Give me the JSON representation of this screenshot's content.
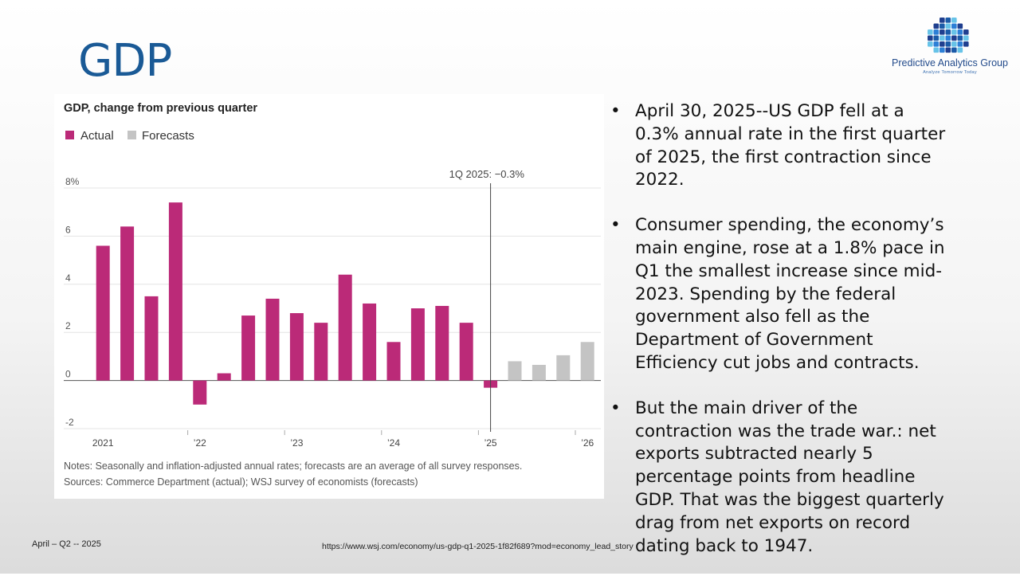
{
  "slide": {
    "title": "GDP",
    "footer_left": "April – Q2 -- 2025",
    "footer_url": "https://www.wsj.com/economy/us-gdp-q1-2025-1f82f689?mod=economy_lead_story"
  },
  "logo": {
    "name": "Predictive Analytics Group",
    "tagline": "Analyze Tomorrow Today",
    "colors": [
      "#1f3f8f",
      "#2c7fd6",
      "#67c3e8",
      "#1a5aa8"
    ]
  },
  "bullets": [
    "April 30, 2025--US GDP fell at a 0.3% annual rate in the first quarter of 2025, the first contraction since 2022.",
    "Consumer spending, the economy’s main engine, rose at a 1.8% pace in Q1 the smallest increase since mid-2023. Spending by the federal government also fell as the Department of Government Efficiency cut jobs and contracts.",
    "But the main driver of the contraction was the trade war.: net exports subtracted nearly 5 percentage points from headline GDP.  That was the biggest quarterly drag from net exports on record dating back to 1947."
  ],
  "bullet_symbol": "•",
  "chart_data": {
    "type": "bar",
    "title": "GDP, change from previous quarter",
    "legend": [
      {
        "name": "Actual",
        "color": "#bb2a78"
      },
      {
        "name": "Forecasts",
        "color": "#c4c4c4"
      }
    ],
    "legend_position": "top-left",
    "categories": [
      "1Q21",
      "2Q21",
      "3Q21",
      "4Q21",
      "1Q22",
      "2Q22",
      "3Q22",
      "4Q22",
      "1Q23",
      "2Q23",
      "3Q23",
      "4Q23",
      "1Q24",
      "2Q24",
      "3Q24",
      "4Q24",
      "1Q25",
      "2Q25",
      "3Q25",
      "4Q25",
      "1Q26"
    ],
    "series": [
      {
        "name": "Actual",
        "color": "#bb2a78",
        "values": [
          5.6,
          6.4,
          3.5,
          7.4,
          -1.0,
          0.3,
          2.7,
          3.4,
          2.8,
          2.4,
          4.4,
          3.2,
          1.6,
          3.0,
          3.1,
          2.4,
          -0.3,
          null,
          null,
          null,
          null
        ]
      },
      {
        "name": "Forecasts",
        "color": "#c4c4c4",
        "values": [
          null,
          null,
          null,
          null,
          null,
          null,
          null,
          null,
          null,
          null,
          null,
          null,
          null,
          null,
          null,
          null,
          null,
          0.8,
          0.65,
          1.05,
          1.6
        ]
      }
    ],
    "y_ticks": [
      "8%",
      "6",
      "4",
      "2",
      "0",
      "-2"
    ],
    "y_tick_values": [
      8,
      6,
      4,
      2,
      0,
      -2
    ],
    "x_tick_labels": [
      "2021",
      "’22",
      "’23",
      "’24",
      "’25",
      "’26"
    ],
    "x_tick_categories": [
      "1Q21",
      "1Q22",
      "1Q23",
      "1Q24",
      "1Q25",
      "1Q26"
    ],
    "ylim": [
      -2,
      8
    ],
    "grid": true,
    "annotation": {
      "text": "1Q 2025: −0.3%",
      "category": "1Q25"
    },
    "notes": "Notes: Seasonally and inflation-adjusted annual rates; forecasts are an average of all survey responses.",
    "sources": "Sources: Commerce Department (actual); WSJ survey of economists (forecasts)"
  }
}
